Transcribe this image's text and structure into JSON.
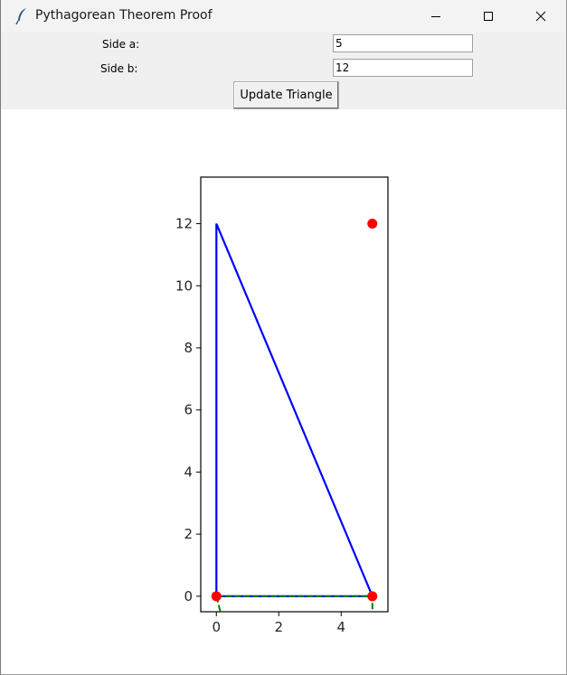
{
  "window": {
    "title": "Pythagorean Theorem Proof",
    "icon": "feather-icon"
  },
  "window_controls": {
    "minimize_icon": "minimize-icon",
    "maximize_icon": "maximize-icon",
    "close_icon": "close-icon"
  },
  "form": {
    "side_a_label": "Side a:",
    "side_a_value": "5",
    "side_b_label": "Side b:",
    "side_b_value": "12",
    "update_button_label": "Update Triangle"
  },
  "chart_data": {
    "type": "line",
    "title": "",
    "xlabel": "",
    "ylabel": "",
    "xlim": [
      -0.5,
      5.5
    ],
    "ylim": [
      -0.5,
      13.5
    ],
    "xticks": [
      0,
      2,
      4
    ],
    "yticks": [
      0,
      2,
      4,
      6,
      8,
      10,
      12
    ],
    "grid": false,
    "series": [
      {
        "kind": "line",
        "color": "#0000ff",
        "style": "solid",
        "x": [
          0,
          5,
          0,
          0
        ],
        "y": [
          0,
          0,
          12,
          0
        ]
      },
      {
        "kind": "line",
        "color": "#008000",
        "style": "dashed",
        "x": [
          0,
          5,
          5
        ],
        "y": [
          0,
          0,
          -0.5
        ]
      },
      {
        "kind": "line",
        "color": "#008000",
        "style": "dashed",
        "x": [
          0,
          0.13
        ],
        "y": [
          0,
          -0.5
        ]
      },
      {
        "kind": "scatter",
        "color": "#ff0000",
        "x": [
          0,
          5,
          5
        ],
        "y": [
          0,
          0,
          12
        ]
      }
    ]
  }
}
